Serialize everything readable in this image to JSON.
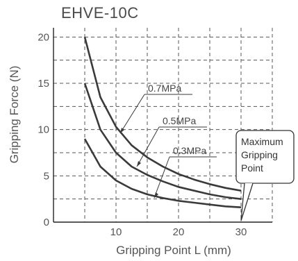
{
  "chart_data": {
    "type": "line",
    "title": "EHVE-10C",
    "xlabel": "Gripping Point L (mm)",
    "ylabel": "Gripping Force (N)",
    "xlim": [
      0,
      35
    ],
    "ylim": [
      0,
      21
    ],
    "x_ticks": [
      10,
      20,
      30
    ],
    "y_ticks": [
      0,
      5,
      10,
      15,
      20
    ],
    "grid": true,
    "series": [
      {
        "name": "0.7MPa",
        "x": [
          5,
          7.5,
          10,
          12.5,
          15,
          17.5,
          20,
          22.5,
          25,
          27.5,
          30
        ],
        "values": [
          20.0,
          13.5,
          10.3,
          8.3,
          7.0,
          6.0,
          5.2,
          4.6,
          4.1,
          3.7,
          3.4
        ]
      },
      {
        "name": "0.5MPa",
        "x": [
          5,
          7.5,
          10,
          12.5,
          15,
          17.5,
          20,
          22.5,
          25,
          27.5,
          30
        ],
        "values": [
          15.0,
          10.0,
          7.5,
          6.0,
          5.1,
          4.4,
          3.8,
          3.4,
          3.0,
          2.7,
          2.5
        ]
      },
      {
        "name": "0.3MPa",
        "x": [
          5,
          7.5,
          10,
          12.5,
          15,
          17.5,
          20,
          22.5,
          25,
          27.5,
          30
        ],
        "values": [
          9.0,
          6.0,
          4.5,
          3.6,
          3.0,
          2.6,
          2.3,
          2.1,
          1.9,
          1.7,
          1.6
        ]
      }
    ],
    "annotation": "Maximum\nGripping\nPoint"
  },
  "colors": {
    "curve": "#3a3a3a",
    "grid": "#555555",
    "frame": "#222222"
  }
}
